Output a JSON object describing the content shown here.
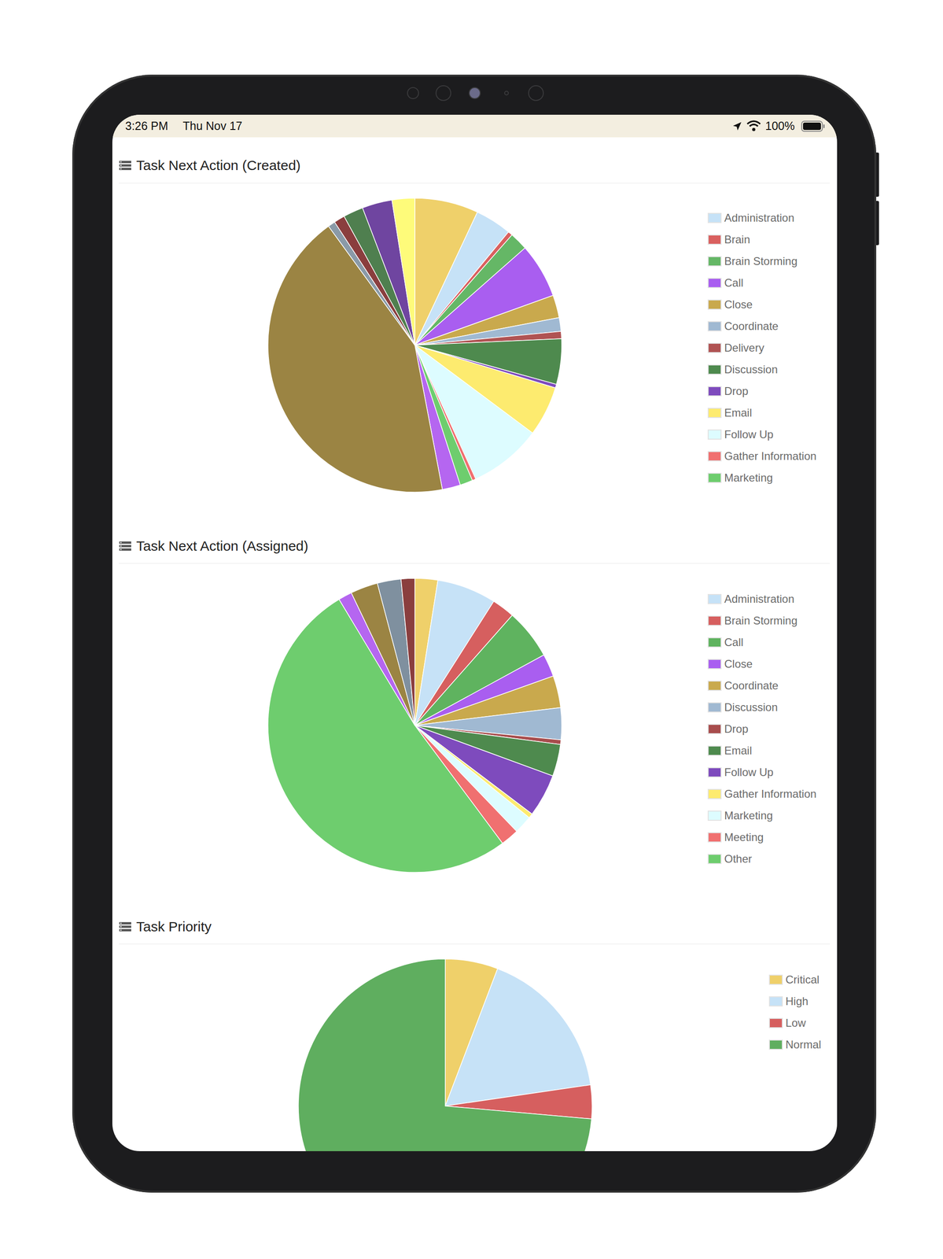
{
  "status_bar": {
    "time": "3:26 PM",
    "date": "Thu Nov 17",
    "battery": "100%"
  },
  "chart_data": [
    {
      "type": "pie",
      "title": "Task Next Action (Created)",
      "legend": "right",
      "categories": [
        null,
        "Administration",
        "Brain",
        "Brain Storming",
        "Call",
        "Close",
        "Coordinate",
        "Delivery",
        "Discussion",
        "Drop",
        "Email",
        "Follow Up",
        "Gather Information",
        "Marketing",
        null,
        null,
        null,
        null,
        null,
        null,
        null
      ],
      "values": [
        7,
        4,
        0.5,
        2,
        6,
        2.5,
        1.5,
        0.8,
        5,
        0.4,
        5.5,
        8,
        0.4,
        1.4,
        2,
        43,
        0.8,
        1.2,
        2.2,
        3.3,
        2.5
      ],
      "colors": [
        "#efd06a",
        "#c6e2f7",
        "#d9605f",
        "#65b766",
        "#a95ef0",
        "#c9a94d",
        "#a0b9d2",
        "#b05353",
        "#4e8a4e",
        "#7e4bbd",
        "#fdeb6f",
        "#ddfcff",
        "#f07070",
        "#6ecd6e",
        "#b566f0",
        "#9b8443",
        "#8a9aa8",
        "#8a3e3e",
        "#4f7f4f",
        "#6f45a0",
        "#fefb7a"
      ]
    },
    {
      "type": "pie",
      "title": "Task Next Action (Assigned)",
      "legend": "right",
      "categories": [
        null,
        "Administration",
        "Brain Storming",
        "Call",
        "Close",
        "Coordinate",
        "Discussion",
        "Drop",
        "Email",
        "Follow Up",
        "Gather Information",
        "Marketing",
        "Meeting",
        "Other",
        null,
        null,
        null,
        null
      ],
      "values": [
        2.5,
        6.5,
        2.5,
        5.5,
        2.5,
        3.5,
        3.5,
        0.5,
        3.5,
        4.7,
        0.5,
        2,
        2,
        51.4,
        1.5,
        3,
        2.6,
        1.5
      ],
      "colors": [
        "#efd06a",
        "#c6e2f7",
        "#d65f5f",
        "#5fb35f",
        "#a95ef0",
        "#c9a94d",
        "#a0b9d2",
        "#a84d4d",
        "#4e8a4e",
        "#7e4bbd",
        "#fdeb6f",
        "#ddfcff",
        "#f07070",
        "#6ecd6e",
        "#b566f0",
        "#9b8443",
        "#7f909f",
        "#8a3e3e"
      ]
    },
    {
      "type": "pie",
      "title": "Task Priority",
      "legend": "right",
      "categories": [
        "Critical",
        "High",
        "Low",
        "Normal"
      ],
      "values": [
        5.8,
        16.9,
        3.7,
        73.6
      ],
      "colors": [
        "#efd06a",
        "#c6e2f7",
        "#d65f5f",
        "#5fae5f"
      ]
    }
  ]
}
